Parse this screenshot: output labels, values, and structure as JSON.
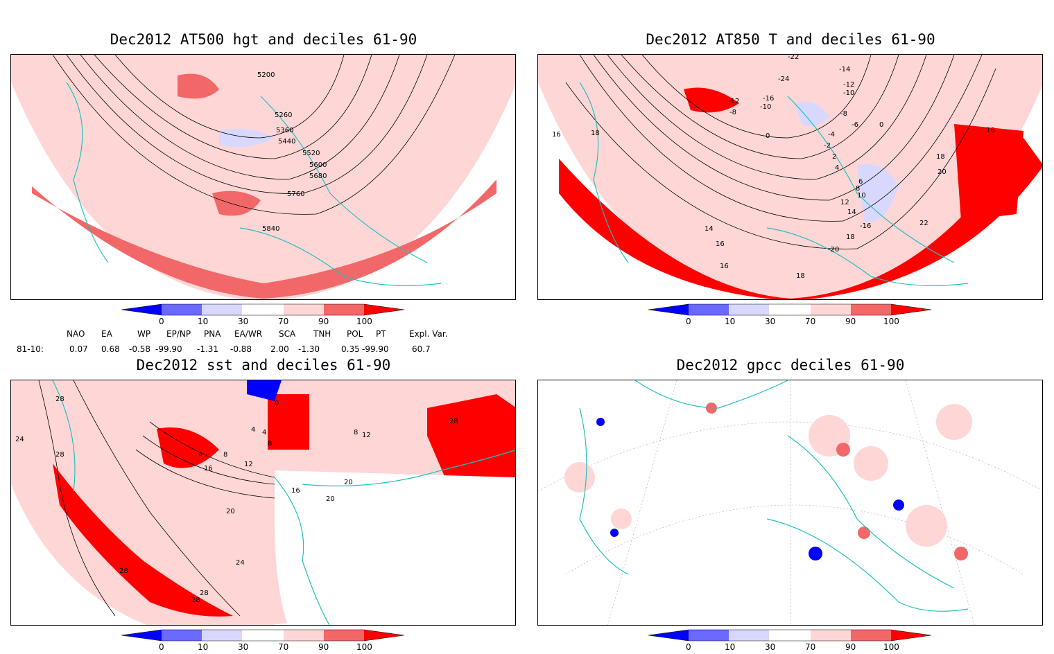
{
  "panels": [
    {
      "id": "p1",
      "title": "Dec2012 AT500 hgt and deciles 61-90",
      "contour_labels": [
        "5200",
        "5260",
        "5360",
        "5440",
        "5520",
        "5600",
        "5680",
        "5760",
        "5840"
      ]
    },
    {
      "id": "p2",
      "title": "Dec2012 AT850 T and deciles 61-90",
      "contour_labels": [
        "-22",
        "-14",
        "-12",
        "-10",
        "-24",
        "-12",
        "-8",
        "-16",
        "-10",
        "-8",
        "-6",
        "-4",
        "-2",
        "0",
        "0",
        "2",
        "4",
        "6",
        "8",
        "10",
        "12",
        "14",
        "16",
        "16",
        "18",
        "18",
        "18",
        "20",
        "22",
        "-20",
        "16",
        "18",
        "14",
        "16",
        "-16"
      ]
    },
    {
      "id": "p3",
      "title": "Dec2012 sst and deciles 61-90",
      "contour_labels": [
        "28",
        "24",
        "28",
        "0",
        "4",
        "4",
        "8",
        "4",
        "8",
        "12",
        "16",
        "16",
        "20",
        "20",
        "20",
        "24",
        "28",
        "28",
        "28",
        "12",
        "8",
        "28"
      ]
    },
    {
      "id": "p4",
      "title": "Dec2012 gpcc deciles 61-90",
      "contour_labels": []
    }
  ],
  "colorbar": {
    "labels": [
      "0",
      "10",
      "30",
      "70",
      "90",
      "100"
    ],
    "colors": [
      "#0000ff",
      "#6a6aff",
      "#d8d8ff",
      "#ffffff",
      "#ffd6d6",
      "#f26868",
      "#ff0000"
    ]
  },
  "indices": {
    "headers": [
      "NAO",
      "EA",
      "WP",
      "EP/NP",
      "PNA",
      "EA/WR",
      "SCA",
      "TNH",
      "POL",
      "PT",
      "Expl. Var."
    ],
    "row_label": "81-10:",
    "values": [
      "0.07",
      "0.68",
      "-0.58",
      "-99.90",
      "-1.31",
      "-0.88",
      "2.00",
      "-1.30",
      "0.35",
      "-99.90",
      "60.7"
    ]
  },
  "colors": {
    "coast": "#20c0c0",
    "contour": "#000000",
    "frame": "#000000"
  }
}
